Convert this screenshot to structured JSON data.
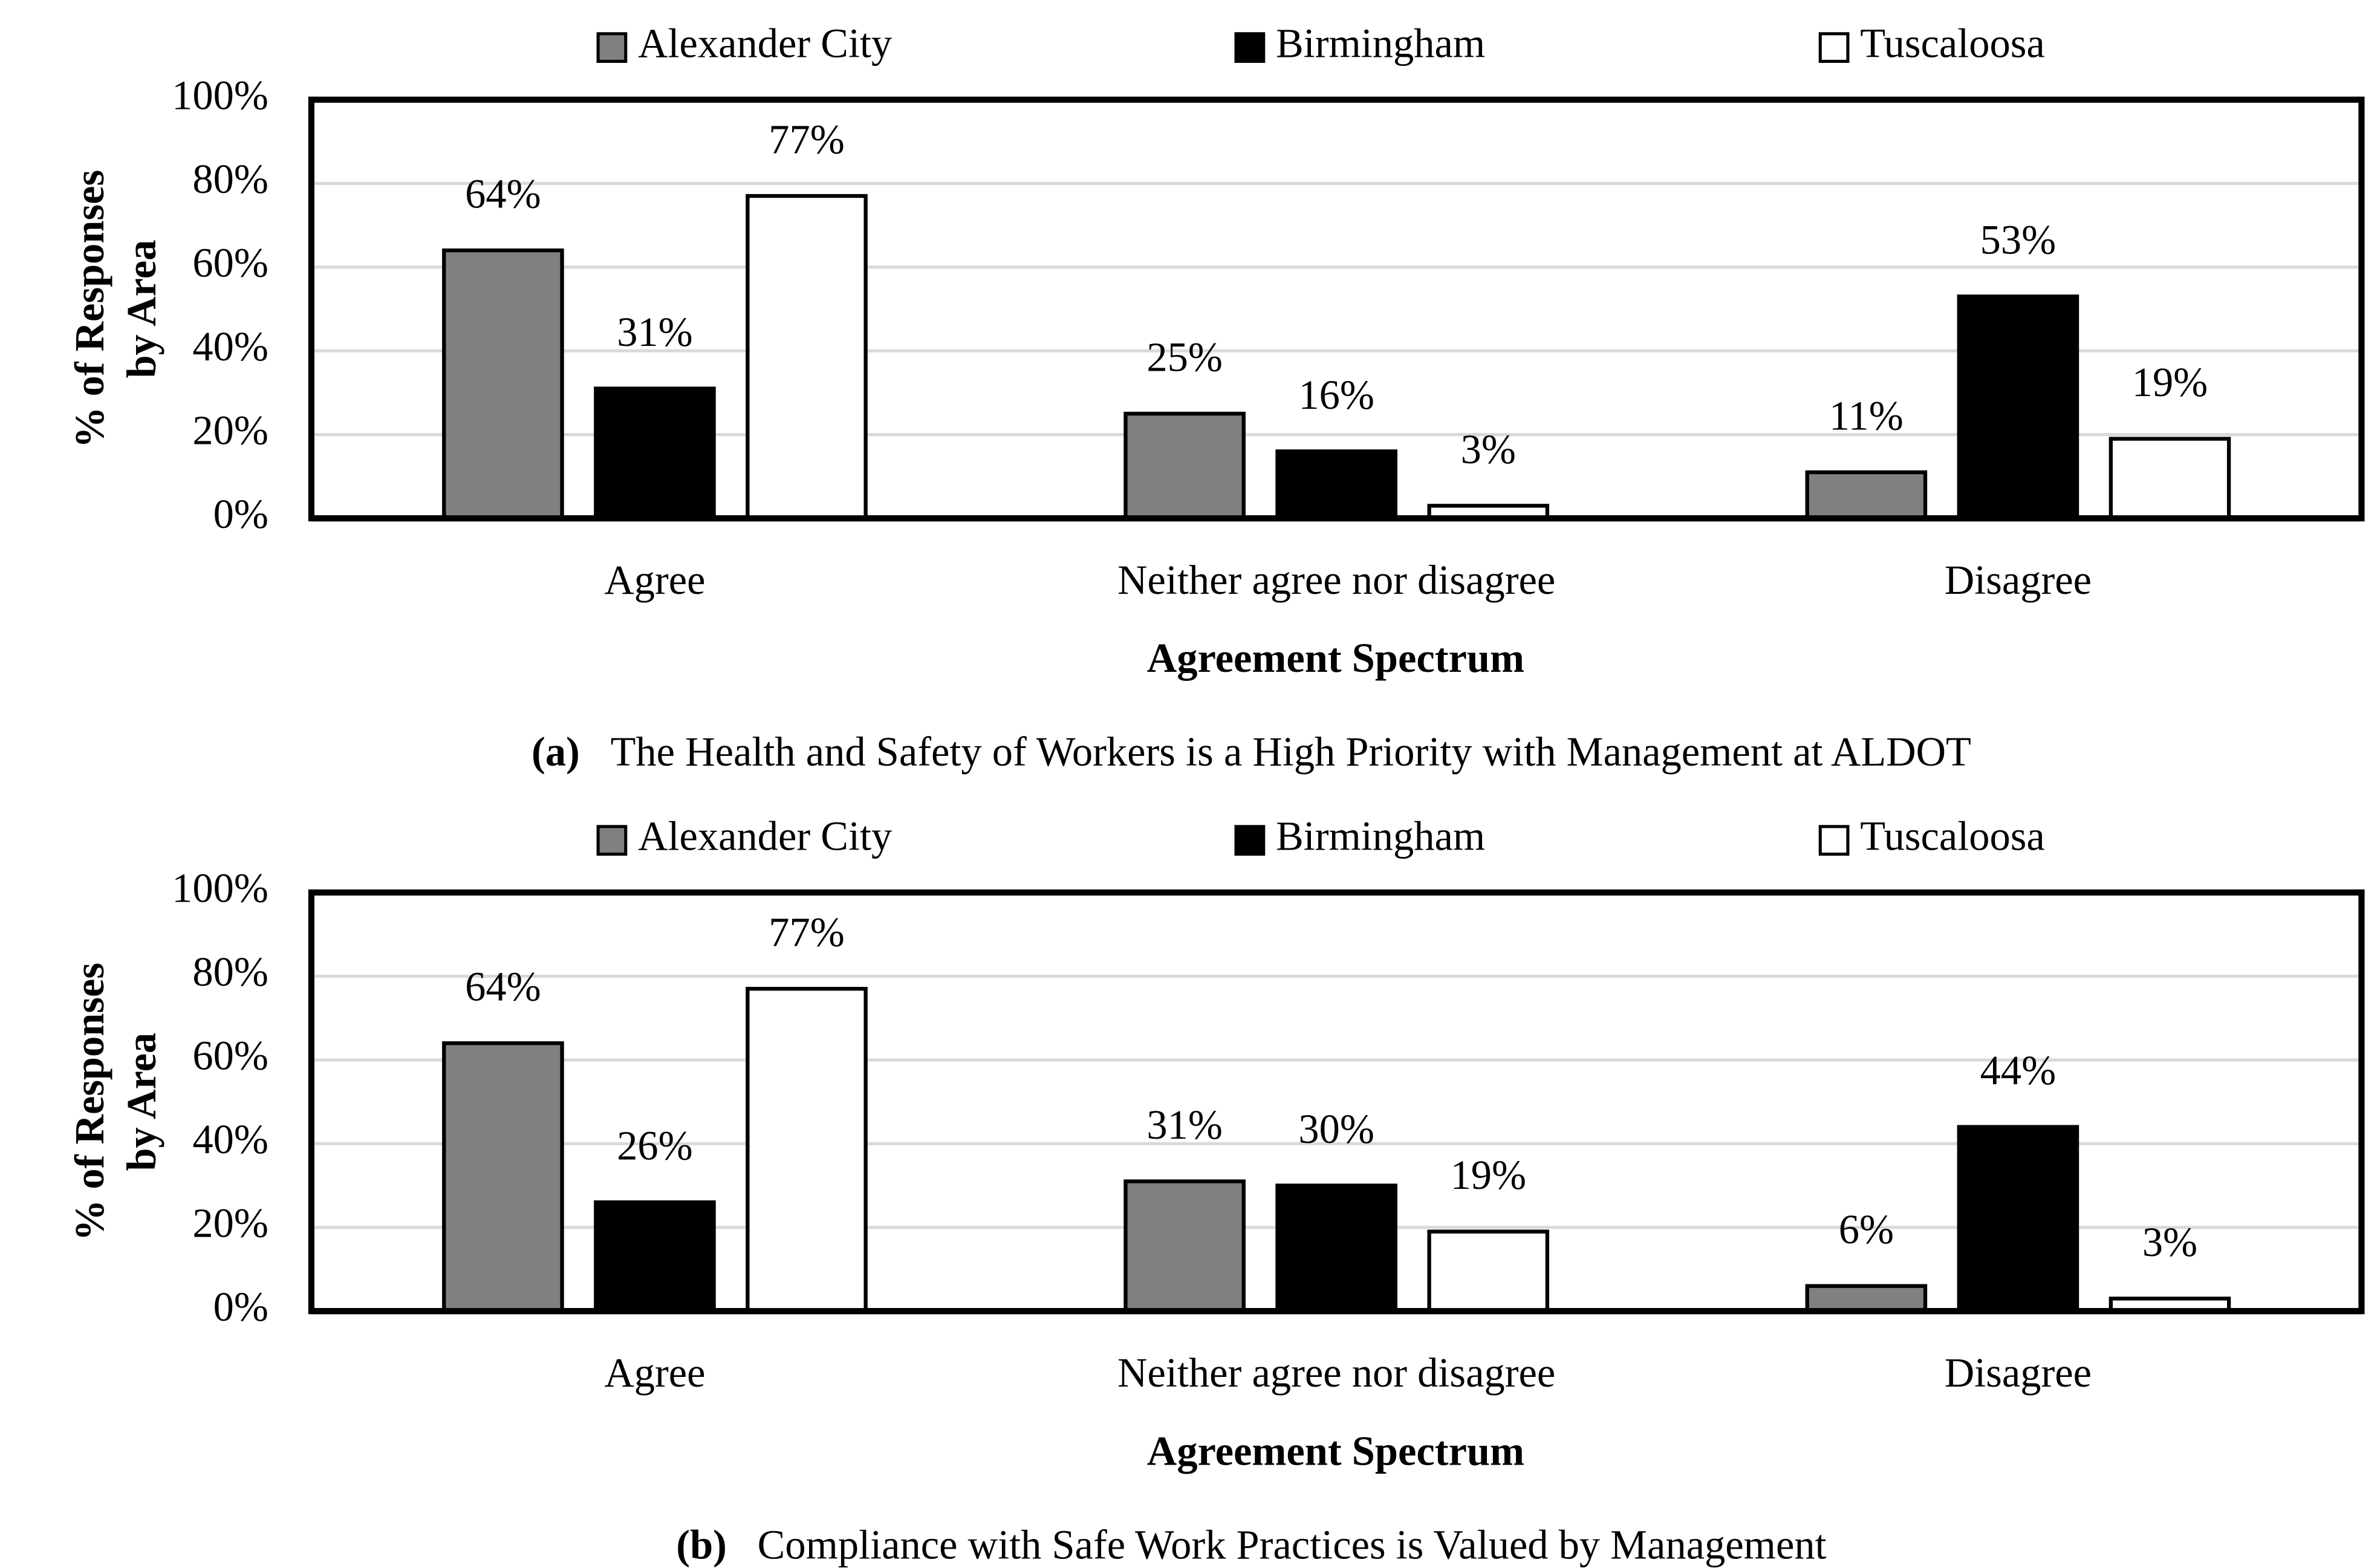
{
  "chart_data": [
    {
      "type": "bar",
      "caption_label": "(a)",
      "title": "The Health and Safety of Workers is a High Priority with Management at ALDOT",
      "x_label": "Agreement Spectrum",
      "y_label": [
        "% of Responses",
        "by Area"
      ],
      "categories": [
        "Agree",
        "Neither agree nor disagree",
        "Disagree"
      ],
      "series": [
        {
          "name": "Alexander City",
          "color": "#808080",
          "values": [
            64,
            25,
            11
          ],
          "value_labels": [
            "64%",
            "25%",
            "11%"
          ]
        },
        {
          "name": "Birmingham",
          "color": "#000000",
          "values": [
            31,
            16,
            53
          ],
          "value_labels": [
            "31%",
            "16%",
            "53%"
          ]
        },
        {
          "name": "Tuscaloosa",
          "color": "#ffffff",
          "values": [
            77,
            3,
            19
          ],
          "value_labels": [
            "77%",
            "3%",
            "19%"
          ]
        }
      ],
      "ylim": [
        0,
        100
      ],
      "yticks": [
        {
          "value": 0,
          "label": "0%"
        },
        {
          "value": 20,
          "label": "20%"
        },
        {
          "value": 40,
          "label": "40%"
        },
        {
          "value": 60,
          "label": "60%"
        },
        {
          "value": 80,
          "label": "80%"
        },
        {
          "value": 100,
          "label": "100%"
        }
      ],
      "grid": true,
      "legend": "top"
    },
    {
      "type": "bar",
      "caption_label": "(b)",
      "title": "Compliance with Safe Work Practices is Valued by Management",
      "x_label": "Agreement Spectrum",
      "y_label": [
        "% of Responses",
        "by Area"
      ],
      "categories": [
        "Agree",
        "Neither agree nor disagree",
        "Disagree"
      ],
      "series": [
        {
          "name": "Alexander City",
          "color": "#808080",
          "values": [
            64,
            31,
            6
          ],
          "value_labels": [
            "64%",
            "31%",
            "6%"
          ]
        },
        {
          "name": "Birmingham",
          "color": "#000000",
          "values": [
            26,
            30,
            44
          ],
          "value_labels": [
            "26%",
            "30%",
            "44%"
          ]
        },
        {
          "name": "Tuscaloosa",
          "color": "#ffffff",
          "values": [
            77,
            19,
            3
          ],
          "value_labels": [
            "77%",
            "19%",
            "3%"
          ]
        }
      ],
      "ylim": [
        0,
        100
      ],
      "yticks": [
        {
          "value": 0,
          "label": "0%"
        },
        {
          "value": 20,
          "label": "20%"
        },
        {
          "value": 40,
          "label": "40%"
        },
        {
          "value": 60,
          "label": "60%"
        },
        {
          "value": 80,
          "label": "80%"
        },
        {
          "value": 100,
          "label": "100%"
        }
      ],
      "grid": true,
      "legend": "top"
    }
  ]
}
